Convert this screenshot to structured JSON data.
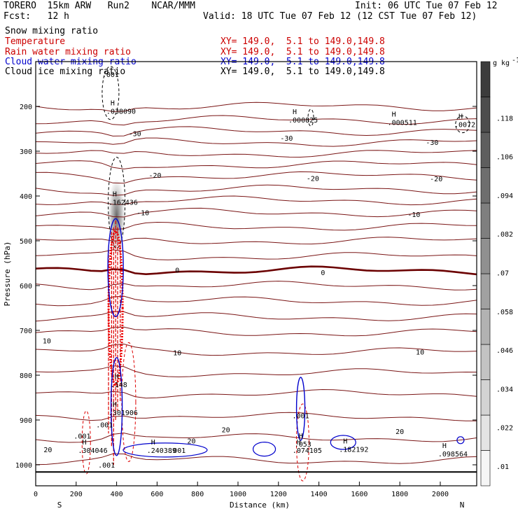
{
  "header": {
    "model": "TORERO  15km ARW   Run2    NCAR/MMM",
    "init": "Init: 06 UTC Tue 07 Feb 12",
    "fcst": "Fcst:   12 h",
    "valid": "Valid: 18 UTC Tue 07 Feb 12 (12 CST Tue 07 Feb 12)"
  },
  "legend": [
    {
      "field": "Snow mixing ratio",
      "xy": "",
      "color": "#000000"
    },
    {
      "field": "Temperature",
      "xy": "XY= 149.0,  5.1 to 149.0,149.8",
      "color": "#cc0000"
    },
    {
      "field": "Rain water mixing ratio",
      "xy": "XY= 149.0,  5.1 to 149.0,149.8",
      "color": "#cc0000"
    },
    {
      "field": "Cloud water mixing ratio",
      "xy": "XY= 149.0,  5.1 to 149.0,149.8",
      "color": "#0000cc"
    },
    {
      "field": "Cloud ice mixing ratio",
      "xy": "XY= 149.0,  5.1 to 149.0,149.8",
      "color": "#000000"
    }
  ],
  "colorbar": {
    "unit": "g kg",
    "unit_exp": "-1",
    "ticks": [
      ".01",
      ".022",
      ".034",
      ".046",
      ".058",
      ".07",
      ".082",
      ".094",
      ".106",
      ".118"
    ]
  },
  "chart_data": {
    "type": "contour-cross-section",
    "xlabel": "Distance (km)",
    "ylabel": "Pressure (hPa)",
    "xlim": [
      0,
      2180
    ],
    "ylim": [
      1050,
      100
    ],
    "x_ticks": [
      0,
      200,
      400,
      600,
      800,
      1000,
      1200,
      1400,
      1600,
      1800,
      2000
    ],
    "y_ticks": [
      200,
      300,
      400,
      500,
      600,
      700,
      800,
      900,
      1000
    ],
    "x_end_labels": {
      "left": "S",
      "right": "N"
    },
    "temperature_contours": [
      {
        "label": "-30",
        "label_points": [
          [
            490,
            260
          ],
          [
            1240,
            270
          ],
          [
            1960,
            280
          ]
        ]
      },
      {
        "label": "-20",
        "label_points": [
          [
            590,
            353
          ],
          [
            1370,
            360
          ],
          [
            1980,
            361
          ]
        ]
      },
      {
        "label": "-10",
        "label_points": [
          [
            530,
            437
          ],
          [
            1870,
            441
          ]
        ]
      },
      {
        "label": "0",
        "label_points": [
          [
            700,
            565
          ],
          [
            1420,
            570
          ]
        ]
      },
      {
        "label": "10",
        "label_points": [
          [
            55,
            723
          ],
          [
            700,
            749
          ],
          [
            1900,
            748
          ]
        ]
      },
      {
        "label": "20",
        "label_points": [
          [
            60,
            966
          ],
          [
            770,
            946
          ],
          [
            940,
            921
          ],
          [
            1800,
            925
          ]
        ]
      }
    ],
    "maxima": [
      {
        "field": "Cloud ice",
        "value": ".038090",
        "distance": 370,
        "pressure": 210
      },
      {
        "field": "Cloud ice",
        "value": ".000825",
        "distance": 1270,
        "pressure": 230
      },
      {
        "field": "Cloud ice",
        "value": ".000511",
        "distance": 1760,
        "pressure": 235
      },
      {
        "field": "Cloud ice",
        "value": ".0072",
        "distance": 2090,
        "pressure": 240
      },
      {
        "field": "Snow",
        "value": ".162436",
        "distance": 380,
        "pressure": 413
      },
      {
        "field": "Rain water",
        "value": ".148",
        "distance": 390,
        "pressure": 820
      },
      {
        "field": "Rain water",
        "value": ".053",
        "distance": 1300,
        "pressure": 953
      },
      {
        "field": "Cloud water",
        "value": ".301906",
        "distance": 380,
        "pressure": 883
      },
      {
        "field": "Cloud water",
        "value": ".304046",
        "distance": 230,
        "pressure": 967
      },
      {
        "field": "Cloud water",
        "value": ".240389",
        "distance": 570,
        "pressure": 967
      },
      {
        "field": "Cloud water",
        "value": ".074105",
        "distance": 1290,
        "pressure": 967
      },
      {
        "field": "Cloud water",
        "value": ".182192",
        "distance": 1520,
        "pressure": 965
      },
      {
        "field": "Cloud water",
        "value": ".098564",
        "distance": 2010,
        "pressure": 975
      }
    ],
    "contour_value_labels": [
      {
        "field": "Cloud ice",
        "value": ".001",
        "distance": 370,
        "pressure": 128
      },
      {
        "field": "Rain water",
        "value": ".001",
        "distance": 1310,
        "pressure": 890
      },
      {
        "field": "Rain water",
        "value": ".001",
        "distance": 350,
        "pressure": 1000
      },
      {
        "field": "Rain water",
        "value": ".001",
        "distance": 230,
        "pressure": 935
      },
      {
        "field": "Rain water",
        "value": ".001",
        "distance": 340,
        "pressure": 910
      },
      {
        "field": "Cloud water",
        "value": ".001",
        "distance": 700,
        "pressure": 967
      }
    ]
  }
}
